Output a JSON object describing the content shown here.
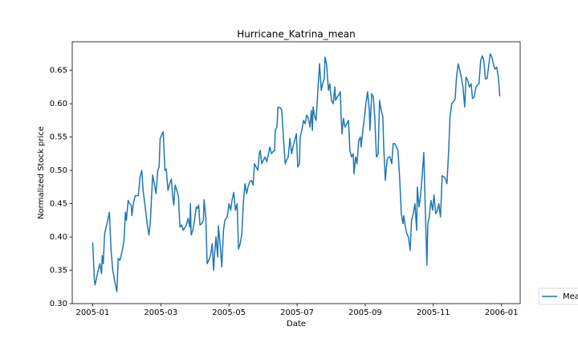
{
  "chart_data": {
    "type": "line",
    "title": "Hurricane_Katrina_mean",
    "xlabel": "Date",
    "ylabel": "Normalized Stock price",
    "x": [
      0,
      0.05,
      0.07,
      0.14,
      0.21,
      0.26,
      0.28,
      0.31,
      0.35,
      0.42,
      0.49,
      0.54,
      0.59,
      0.66,
      0.71,
      0.75,
      0.8,
      0.87,
      0.92,
      0.96,
      0.99,
      1.04,
      1.08,
      1.13,
      1.15,
      1.2,
      1.25,
      1.34,
      1.39,
      1.44,
      1.48,
      1.53,
      1.6,
      1.65,
      1.69,
      1.76,
      1.81,
      1.86,
      1.91,
      1.95,
      1.98,
      2.07,
      2.12,
      2.16,
      2.21,
      2.26,
      2.31,
      2.35,
      2.38,
      2.42,
      2.47,
      2.52,
      2.56,
      2.61,
      2.66,
      2.75,
      2.8,
      2.85,
      2.87,
      2.89,
      2.94,
      2.99,
      3.04,
      3.08,
      3.11,
      3.15,
      3.2,
      3.25,
      3.27,
      3.32,
      3.36,
      3.41,
      3.46,
      3.51,
      3.55,
      3.58,
      3.62,
      3.67,
      3.69,
      3.74,
      3.79,
      3.84,
      3.88,
      3.95,
      4.0,
      4.05,
      4.09,
      4.14,
      4.19,
      4.24,
      4.28,
      4.33,
      4.38,
      4.42,
      4.47,
      4.52,
      4.56,
      4.61,
      4.66,
      4.71,
      4.75,
      4.8,
      4.85,
      4.89,
      4.92,
      4.96,
      5.01,
      5.06,
      5.11,
      5.15,
      5.2,
      5.25,
      5.29,
      5.34,
      5.36,
      5.41,
      5.44,
      5.51,
      5.55,
      5.6,
      5.65,
      5.69,
      5.74,
      5.79,
      5.84,
      5.88,
      5.93,
      5.98,
      6.02,
      6.07,
      6.09,
      6.14,
      6.19,
      6.24,
      6.28,
      6.33,
      6.38,
      6.42,
      6.45,
      6.47,
      6.52,
      6.56,
      6.61,
      6.66,
      6.71,
      6.75,
      6.8,
      6.82,
      6.87,
      6.92,
      6.96,
      7.01,
      7.06,
      7.11,
      7.13,
      7.18,
      7.22,
      7.27,
      7.29,
      7.32,
      7.36,
      7.41,
      7.46,
      7.51,
      7.55,
      7.6,
      7.65,
      7.67,
      7.72,
      7.76,
      7.81,
      7.86,
      7.88,
      7.93,
      7.98,
      8.02,
      8.07,
      8.12,
      8.14,
      8.19,
      8.24,
      8.28,
      8.33,
      8.38,
      8.42,
      8.47,
      8.52,
      8.54,
      8.59,
      8.64,
      8.68,
      8.73,
      8.78,
      8.82,
      8.87,
      8.92,
      8.96,
      9.01,
      9.06,
      9.11,
      9.13,
      9.18,
      9.22,
      9.27,
      9.32,
      9.36,
      9.41,
      9.46,
      9.51,
      9.53,
      9.58,
      9.62,
      9.67,
      9.72,
      9.76,
      9.81,
      9.84,
      9.88,
      9.93,
      9.98,
      10.02,
      10.07,
      10.12,
      10.16,
      10.21,
      10.26,
      10.31,
      10.35,
      10.4,
      10.45,
      10.49,
      10.54,
      10.59,
      10.64,
      10.68,
      10.73,
      10.78,
      10.82,
      10.87,
      10.92,
      10.96,
      11.01,
      11.06,
      11.11,
      11.15,
      11.2,
      11.25,
      11.29,
      11.34,
      11.39,
      11.44,
      11.48,
      11.53,
      11.58,
      11.62,
      11.67,
      11.72,
      11.76,
      11.81,
      11.86,
      11.91,
      11.95
    ],
    "series": [
      {
        "name": "Mean",
        "color": "#1f77b4",
        "values": [
          0.392,
          0.335,
          0.328,
          0.345,
          0.36,
          0.345,
          0.372,
          0.36,
          0.405,
          0.42,
          0.437,
          0.38,
          0.35,
          0.33,
          0.318,
          0.368,
          0.365,
          0.38,
          0.395,
          0.437,
          0.425,
          0.455,
          0.45,
          0.448,
          0.432,
          0.452,
          0.462,
          0.462,
          0.49,
          0.5,
          0.47,
          0.45,
          0.42,
          0.403,
          0.42,
          0.493,
          0.48,
          0.465,
          0.5,
          0.505,
          0.548,
          0.558,
          0.5,
          0.502,
          0.47,
          0.48,
          0.487,
          0.46,
          0.448,
          0.478,
          0.47,
          0.46,
          0.415,
          0.418,
          0.41,
          0.418,
          0.428,
          0.415,
          0.45,
          0.403,
          0.41,
          0.425,
          0.445,
          0.443,
          0.448,
          0.418,
          0.42,
          0.425,
          0.456,
          0.43,
          0.36,
          0.365,
          0.373,
          0.39,
          0.35,
          0.375,
          0.4,
          0.37,
          0.417,
          0.39,
          0.355,
          0.41,
          0.425,
          0.43,
          0.45,
          0.44,
          0.455,
          0.467,
          0.44,
          0.45,
          0.382,
          0.39,
          0.405,
          0.45,
          0.48,
          0.465,
          0.475,
          0.483,
          0.485,
          0.478,
          0.51,
          0.505,
          0.5,
          0.525,
          0.53,
          0.51,
          0.515,
          0.52,
          0.513,
          0.522,
          0.535,
          0.525,
          0.528,
          0.53,
          0.56,
          0.565,
          0.595,
          0.594,
          0.59,
          0.548,
          0.51,
          0.515,
          0.52,
          0.548,
          0.525,
          0.535,
          0.545,
          0.555,
          0.505,
          0.51,
          0.55,
          0.56,
          0.575,
          0.57,
          0.583,
          0.578,
          0.565,
          0.59,
          0.56,
          0.595,
          0.58,
          0.575,
          0.62,
          0.66,
          0.62,
          0.63,
          0.638,
          0.67,
          0.658,
          0.62,
          0.63,
          0.605,
          0.6,
          0.625,
          0.605,
          0.61,
          0.613,
          0.618,
          0.585,
          0.555,
          0.578,
          0.565,
          0.57,
          0.575,
          0.53,
          0.52,
          0.525,
          0.495,
          0.52,
          0.51,
          0.545,
          0.55,
          0.535,
          0.56,
          0.58,
          0.6,
          0.618,
          0.59,
          0.56,
          0.615,
          0.61,
          0.58,
          0.52,
          0.525,
          0.605,
          0.59,
          0.58,
          0.54,
          0.485,
          0.515,
          0.52,
          0.52,
          0.51,
          0.54,
          0.54,
          0.535,
          0.53,
          0.49,
          0.435,
          0.42,
          0.432,
          0.415,
          0.405,
          0.4,
          0.38,
          0.425,
          0.435,
          0.45,
          0.41,
          0.475,
          0.445,
          0.46,
          0.49,
          0.527,
          0.45,
          0.358,
          0.42,
          0.43,
          0.455,
          0.44,
          0.463,
          0.435,
          0.44,
          0.45,
          0.43,
          0.492,
          0.49,
          0.488,
          0.48,
          0.53,
          0.58,
          0.6,
          0.603,
          0.607,
          0.64,
          0.66,
          0.65,
          0.64,
          0.625,
          0.595,
          0.64,
          0.635,
          0.625,
          0.63,
          0.608,
          0.61,
          0.625,
          0.628,
          0.63,
          0.665,
          0.672,
          0.665,
          0.637,
          0.638,
          0.655,
          0.675,
          0.67,
          0.66,
          0.652,
          0.655,
          0.64,
          0.611
        ]
      }
    ],
    "xlim": [
      -0.6,
      12.55
    ],
    "xticks": [
      {
        "value": 0,
        "label": "2005-01"
      },
      {
        "value": 2,
        "label": "2005-03"
      },
      {
        "value": 4,
        "label": "2005-05"
      },
      {
        "value": 6,
        "label": "2005-07"
      },
      {
        "value": 8,
        "label": "2005-09"
      },
      {
        "value": 10,
        "label": "2005-11"
      },
      {
        "value": 12,
        "label": "2006-01"
      }
    ],
    "ylim": [
      0.3,
      0.693
    ],
    "yticks": [
      {
        "value": 0.3,
        "label": "0.30"
      },
      {
        "value": 0.35,
        "label": "0.35"
      },
      {
        "value": 0.4,
        "label": "0.40"
      },
      {
        "value": 0.45,
        "label": "0.45"
      },
      {
        "value": 0.5,
        "label": "0.50"
      },
      {
        "value": 0.55,
        "label": "0.55"
      },
      {
        "value": 0.6,
        "label": "0.60"
      },
      {
        "value": 0.65,
        "label": "0.65"
      }
    ],
    "legend": "outside-right"
  }
}
